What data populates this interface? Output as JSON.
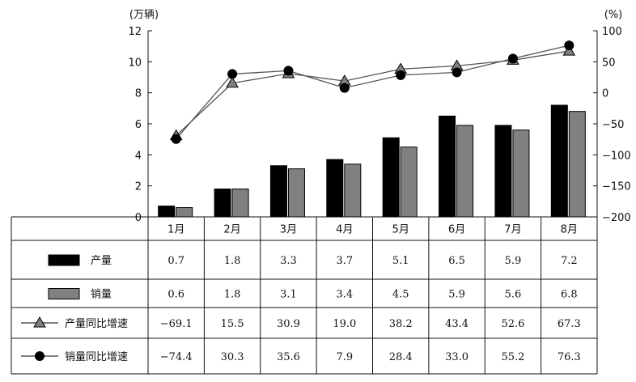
{
  "chart_data": {
    "type": "bar",
    "categories": [
      "1月",
      "2月",
      "3月",
      "4月",
      "5月",
      "6月",
      "7月",
      "8月"
    ],
    "left_unit": "(万辆)",
    "right_unit": "(%)",
    "left_ticks": [
      "0",
      "2",
      "4",
      "6",
      "8",
      "10",
      "12"
    ],
    "right_ticks": [
      "−200",
      "−150",
      "−100",
      "−50",
      "0",
      "50",
      "100"
    ],
    "ylim_left": [
      0,
      12
    ],
    "ylim_right": [
      -200,
      100
    ],
    "series": [
      {
        "name": "产量",
        "kind": "bar",
        "color": "#000000",
        "values": [
          0.7,
          1.8,
          3.3,
          3.7,
          5.1,
          6.5,
          5.9,
          7.2
        ],
        "display": [
          "0.7",
          "1.8",
          "3.3",
          "3.7",
          "5.1",
          "6.5",
          "5.9",
          "7.2"
        ]
      },
      {
        "name": "销量",
        "kind": "bar",
        "color": "#808080",
        "values": [
          0.6,
          1.8,
          3.1,
          3.4,
          4.5,
          5.9,
          5.6,
          6.8
        ],
        "display": [
          "0.6",
          "1.8",
          "3.1",
          "3.4",
          "4.5",
          "5.9",
          "5.6",
          "6.8"
        ]
      },
      {
        "name": "产量同比增速",
        "kind": "line",
        "marker": "triangle",
        "color": "#808080",
        "values": [
          -69.1,
          15.5,
          30.9,
          19.0,
          38.2,
          43.4,
          52.6,
          67.3
        ],
        "display": [
          "−69.1",
          "15.5",
          "30.9",
          "19.0",
          "38.2",
          "43.4",
          "52.6",
          "67.3"
        ]
      },
      {
        "name": "销量同比增速",
        "kind": "line",
        "marker": "circle",
        "color": "#000000",
        "values": [
          -74.4,
          30.3,
          35.6,
          7.9,
          28.4,
          33.0,
          55.2,
          76.3
        ],
        "display": [
          "−74.4",
          "30.3",
          "35.6",
          "7.9",
          "28.4",
          "33.0",
          "55.2",
          "76.3"
        ]
      }
    ]
  }
}
